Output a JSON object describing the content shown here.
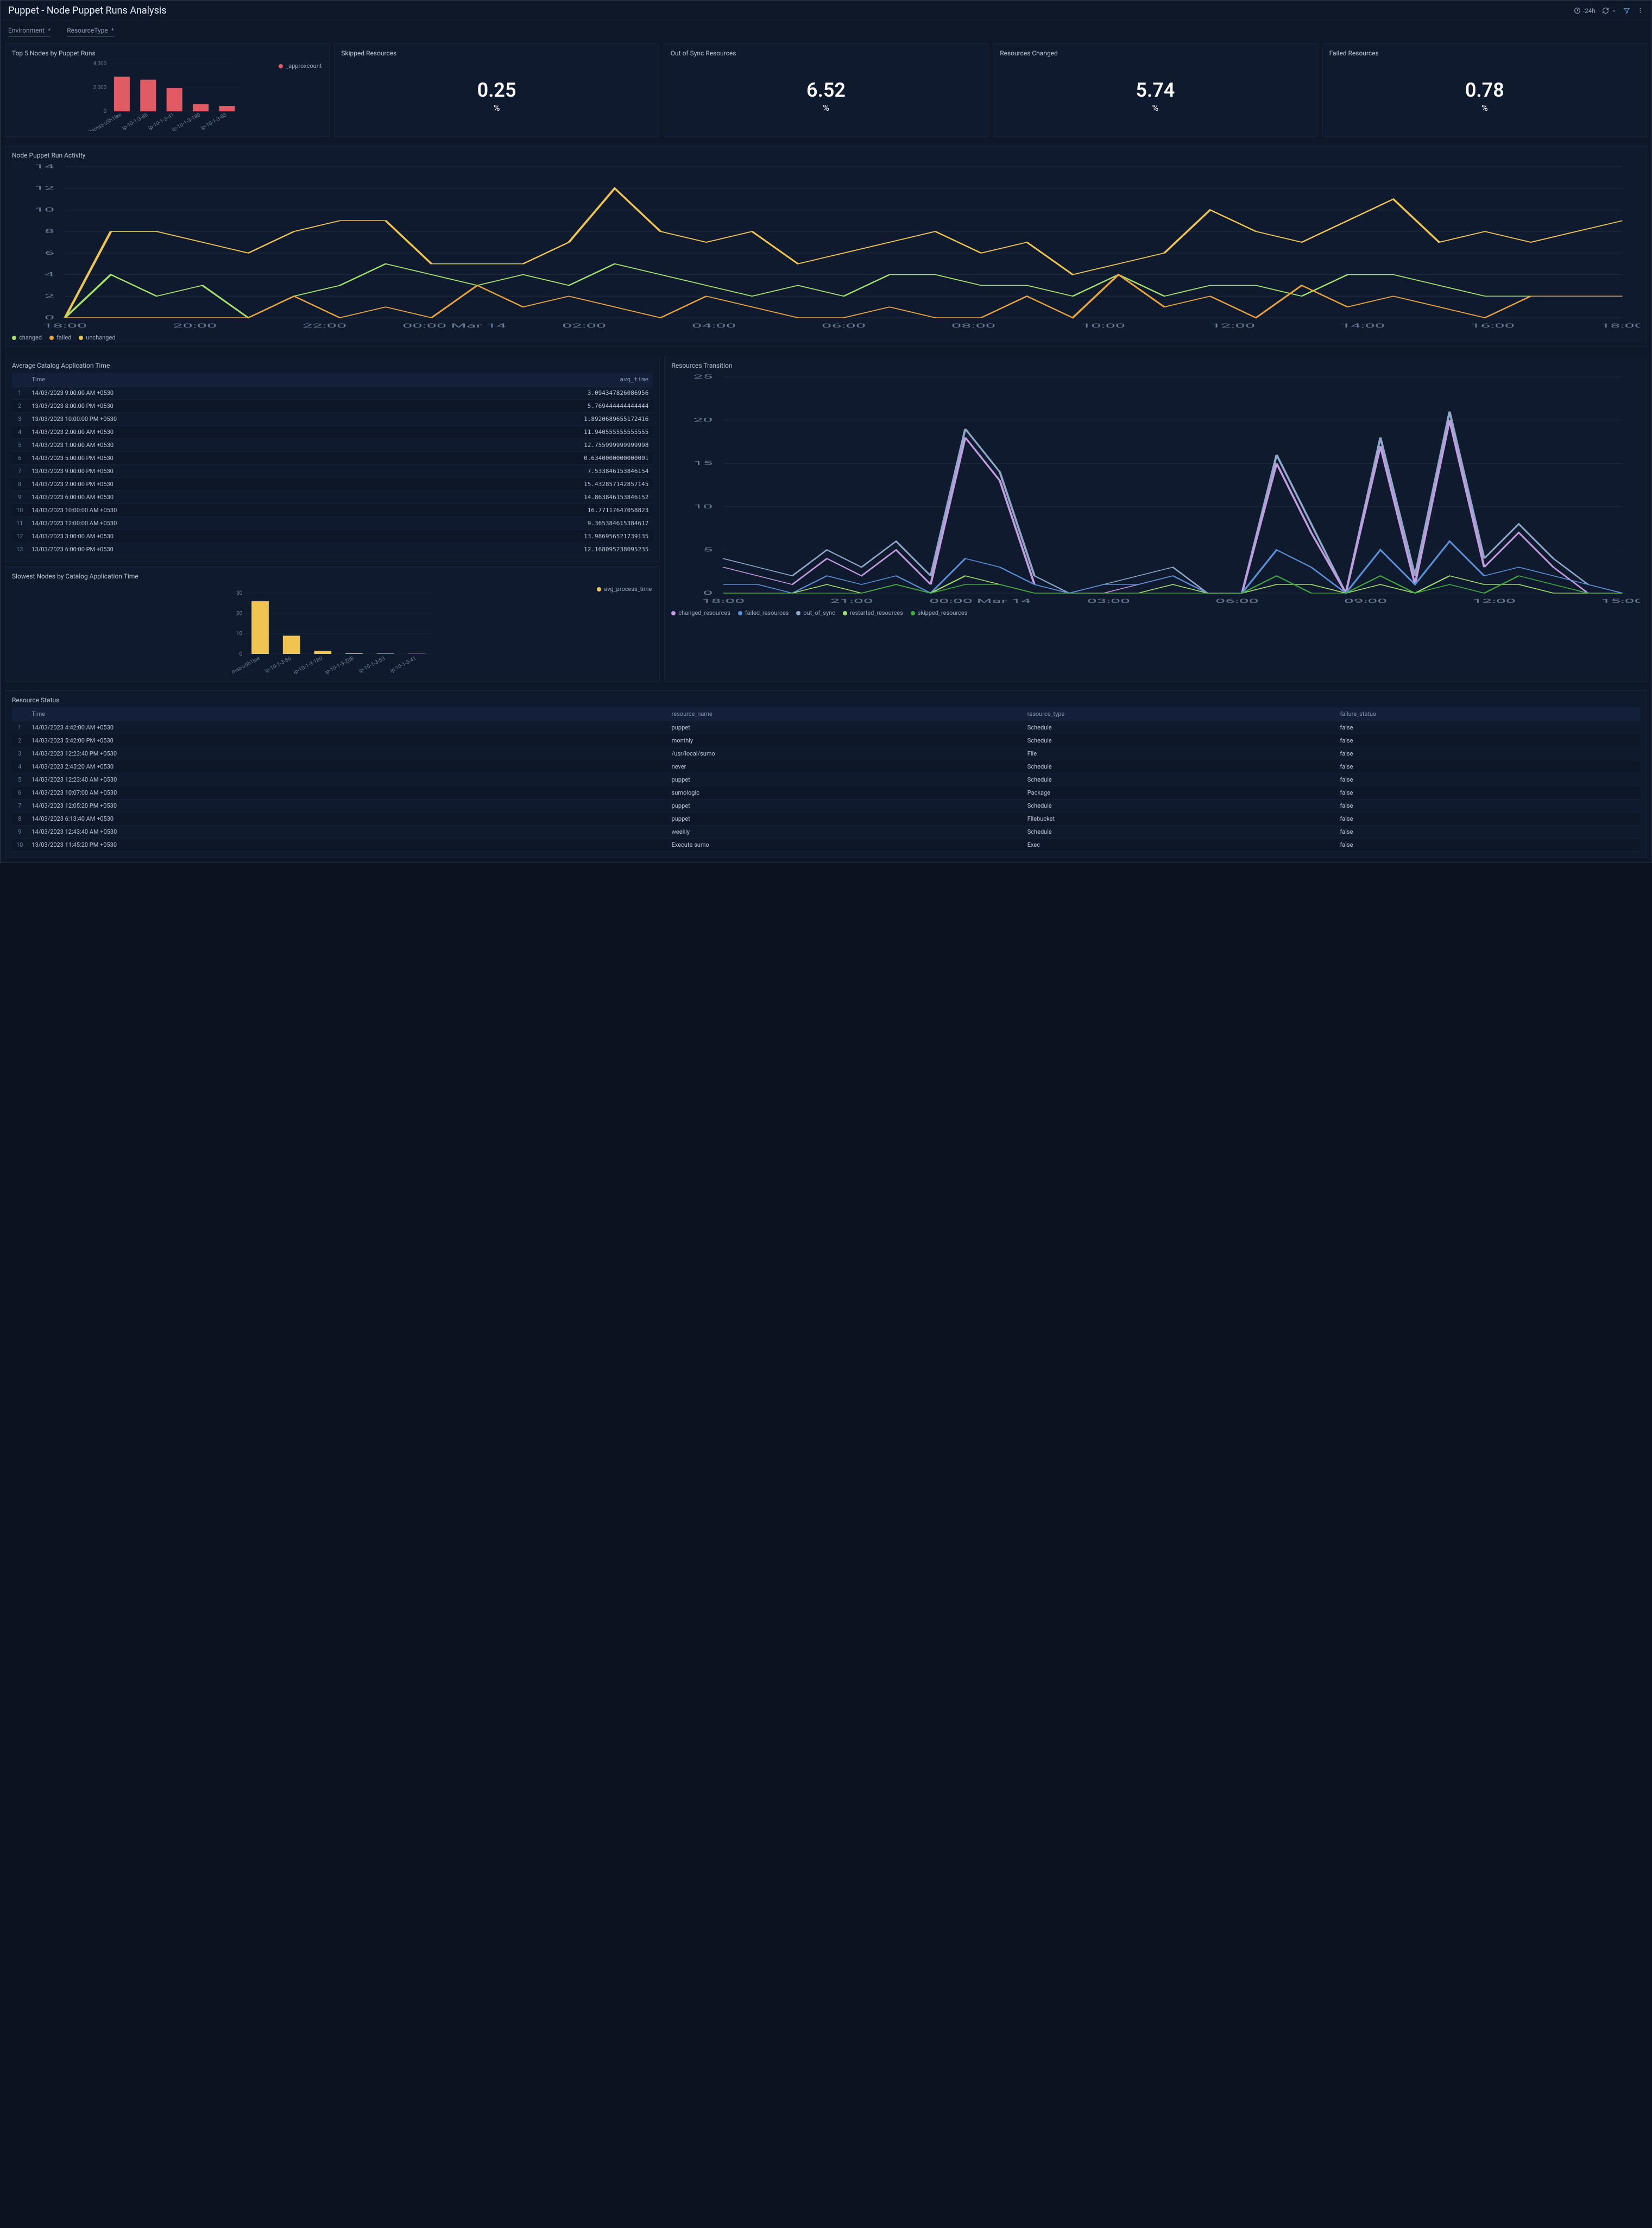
{
  "header": {
    "title": "Puppet - Node Puppet Runs Analysis",
    "time_range": "-24h"
  },
  "filters": [
    {
      "label": "Environment",
      "value": "*"
    },
    {
      "label": "ResourceType",
      "value": "*"
    }
  ],
  "colors": {
    "bg": "#0f1829",
    "panel": "#101a2e",
    "grid": "#1e2a40",
    "text": "#b8c4d6",
    "muted": "#6b7a94",
    "red": "#e15b64",
    "orange": "#e8a33d",
    "green": "#7fd17f",
    "teal": "#5fbecc",
    "blue": "#5b8fd6",
    "lime": "#a5e06b",
    "violet": "#c29be0",
    "yellow": "#f0c451"
  },
  "panels": {
    "top5": {
      "title": "Top 5 Nodes by Puppet Runs",
      "legend_label": "_approxcount",
      "type": "bar",
      "ylim": [
        0,
        4000
      ],
      "ytick_step": 2000,
      "categories": [
        "2amaz-u9h1lee",
        "ip-10-1-3-86",
        "ip-10-1-3-41",
        "ip-10-1-3-180",
        "ip-10-1-3-83"
      ],
      "values": [
        2900,
        2650,
        1950,
        600,
        450
      ],
      "bar_color": "#e15b64"
    },
    "kpis": [
      {
        "title": "Skipped Resources",
        "value": "0.25",
        "unit": "%"
      },
      {
        "title": "Out of Sync Resources",
        "value": "6.52",
        "unit": "%"
      },
      {
        "title": "Resources Changed",
        "value": "5.74",
        "unit": "%"
      },
      {
        "title": "Failed Resources",
        "value": "0.78",
        "unit": "%"
      }
    ],
    "activity": {
      "title": "Node Puppet Run Activity",
      "type": "line",
      "ylim": [
        0,
        14
      ],
      "ytick_step": 2,
      "x_labels": [
        "18:00",
        "20:00",
        "22:00",
        "00:00 Mar 14",
        "02:00",
        "04:00",
        "06:00",
        "08:00",
        "10:00",
        "12:00",
        "14:00",
        "16:00",
        "18:00"
      ],
      "legend": [
        {
          "label": "changed",
          "color": "#a5e06b"
        },
        {
          "label": "failed",
          "color": "#e8a33d"
        },
        {
          "label": "unchanged",
          "color": "#f0c451"
        }
      ],
      "series": {
        "unchanged": [
          0,
          8,
          8,
          7,
          6,
          8,
          9,
          9,
          5,
          5,
          5,
          7,
          12,
          8,
          7,
          8,
          5,
          6,
          7,
          8,
          6,
          7,
          4,
          5,
          6,
          10,
          8,
          7,
          9,
          11,
          7,
          8,
          7,
          8,
          9
        ],
        "changed": [
          0,
          4,
          2,
          3,
          0,
          2,
          3,
          5,
          4,
          3,
          4,
          3,
          5,
          4,
          3,
          2,
          3,
          2,
          4,
          4,
          3,
          3,
          2,
          4,
          2,
          3,
          3,
          2,
          4,
          4,
          3,
          2,
          2,
          2,
          2
        ],
        "failed": [
          0,
          0,
          0,
          0,
          0,
          2,
          0,
          1,
          0,
          3,
          1,
          2,
          1,
          0,
          2,
          1,
          0,
          0,
          1,
          0,
          0,
          2,
          0,
          4,
          1,
          2,
          0,
          3,
          1,
          2,
          1,
          0,
          2,
          2,
          2
        ]
      }
    },
    "avg_catalog": {
      "title": "Average Catalog Application Time",
      "columns": [
        "Time",
        "avg_time"
      ],
      "rows": [
        [
          "1",
          "14/03/2023 9:00:00 AM +0530",
          "3.094347826086956"
        ],
        [
          "2",
          "13/03/2023 8:00:00 PM +0530",
          "5.769444444444444"
        ],
        [
          "3",
          "13/03/2023 10:00:00 PM +0530",
          "1.8920689655172416"
        ],
        [
          "4",
          "14/03/2023 2:00:00 AM +0530",
          "11.940555555555555"
        ],
        [
          "5",
          "14/03/2023 1:00:00 AM +0530",
          "12.755999999999998"
        ],
        [
          "6",
          "14/03/2023 5:00:00 PM +0530",
          "0.6340000000000001"
        ],
        [
          "7",
          "13/03/2023 9:00:00 PM +0530",
          "7.533846153846154"
        ],
        [
          "8",
          "14/03/2023 2:00:00 PM +0530",
          "15.432857142857145"
        ],
        [
          "9",
          "14/03/2023 6:00:00 AM +0530",
          "14.863846153846152"
        ],
        [
          "10",
          "14/03/2023 10:00:00 AM +0530",
          "16.77117647058823"
        ],
        [
          "11",
          "14/03/2023 12:00:00 AM +0530",
          "9.365384615384617"
        ],
        [
          "12",
          "14/03/2023 3:00:00 AM +0530",
          "13.986956521739135"
        ],
        [
          "13",
          "13/03/2023 6:00:00 PM +0530",
          "12.168095238095235"
        ]
      ]
    },
    "slowest": {
      "title": "Slowest Nodes by Catalog Application Time",
      "legend_label": "avg_process_time",
      "type": "bar",
      "ylim": [
        0,
        30
      ],
      "ytick_step": 10,
      "categories": [
        "maz-u9h1lee",
        "ip-10-1-3-86",
        "ip-10-1-3-180",
        "ip-10-1-3-208",
        "ip-10-1-3-83",
        "ip-10-1-3-41"
      ],
      "values": [
        26,
        9,
        1.5,
        0.3,
        0.2,
        0.1
      ],
      "bar_color": "#f0c451"
    },
    "transition": {
      "title": "Resources Transition",
      "type": "line",
      "ylim": [
        0,
        25
      ],
      "ytick_step": 5,
      "x_labels": [
        "18:00",
        "21:00",
        "00:00 Mar 14",
        "03:00",
        "06:00",
        "09:00",
        "12:00",
        "15:00"
      ],
      "legend": [
        {
          "label": "changed_resources",
          "color": "#c29be0"
        },
        {
          "label": "failed_resources",
          "color": "#5b8fd6"
        },
        {
          "label": "out_of_sync",
          "color": "#8fa8c7"
        },
        {
          "label": "restarted_resources",
          "color": "#a5e06b"
        },
        {
          "label": "skipped_resources",
          "color": "#3fab3f"
        }
      ],
      "series": {
        "out_of_sync": [
          4,
          3,
          2,
          5,
          3,
          6,
          2,
          19,
          14,
          2,
          0,
          1,
          2,
          3,
          0,
          0,
          16,
          8,
          0,
          18,
          2,
          21,
          4,
          8,
          4,
          1,
          0
        ],
        "changed_resources": [
          3,
          2,
          1,
          4,
          2,
          5,
          1,
          18,
          13,
          1,
          0,
          0,
          1,
          2,
          0,
          0,
          15,
          7,
          0,
          17,
          1,
          20,
          3,
          7,
          3,
          0,
          0
        ],
        "failed_resources": [
          1,
          1,
          0,
          2,
          1,
          2,
          0,
          4,
          3,
          1,
          0,
          1,
          1,
          2,
          0,
          0,
          5,
          3,
          0,
          5,
          1,
          6,
          2,
          3,
          2,
          1,
          0
        ],
        "restarted_resources": [
          0,
          0,
          0,
          1,
          0,
          1,
          0,
          2,
          1,
          0,
          0,
          0,
          0,
          1,
          0,
          0,
          1,
          1,
          0,
          1,
          0,
          2,
          1,
          1,
          0,
          0,
          0
        ],
        "skipped_resources": [
          0,
          0,
          0,
          0,
          0,
          1,
          0,
          1,
          1,
          0,
          0,
          0,
          0,
          0,
          0,
          0,
          2,
          0,
          0,
          2,
          0,
          1,
          0,
          2,
          1,
          0,
          0
        ]
      }
    },
    "resource_status": {
      "title": "Resource Status",
      "columns": [
        "Time",
        "resource_name",
        "resource_type",
        "failure_status"
      ],
      "rows": [
        [
          "1",
          "14/03/2023 4:42:00 AM +0530",
          "puppet",
          "Schedule",
          "false"
        ],
        [
          "2",
          "14/03/2023 5:42:00 PM +0530",
          "monthly",
          "Schedule",
          "false"
        ],
        [
          "3",
          "14/03/2023 12:23:40 PM +0530",
          "/usr/local/sumo",
          "File",
          "false"
        ],
        [
          "4",
          "14/03/2023 2:45:20 AM +0530",
          "never",
          "Schedule",
          "false"
        ],
        [
          "5",
          "14/03/2023 12:23:40 AM +0530",
          "puppet",
          "Schedule",
          "false"
        ],
        [
          "6",
          "14/03/2023 10:07:00 AM +0530",
          "sumologic",
          "Package",
          "false"
        ],
        [
          "7",
          "14/03/2023 12:05:20 PM +0530",
          "puppet",
          "Schedule",
          "false"
        ],
        [
          "8",
          "14/03/2023 6:13:40 AM +0530",
          "puppet",
          "Filebucket",
          "false"
        ],
        [
          "9",
          "14/03/2023 12:43:40 AM +0530",
          "weekly",
          "Schedule",
          "false"
        ],
        [
          "10",
          "13/03/2023 11:45:20 PM +0530",
          "Execute sumo",
          "Exec",
          "false"
        ]
      ]
    }
  }
}
